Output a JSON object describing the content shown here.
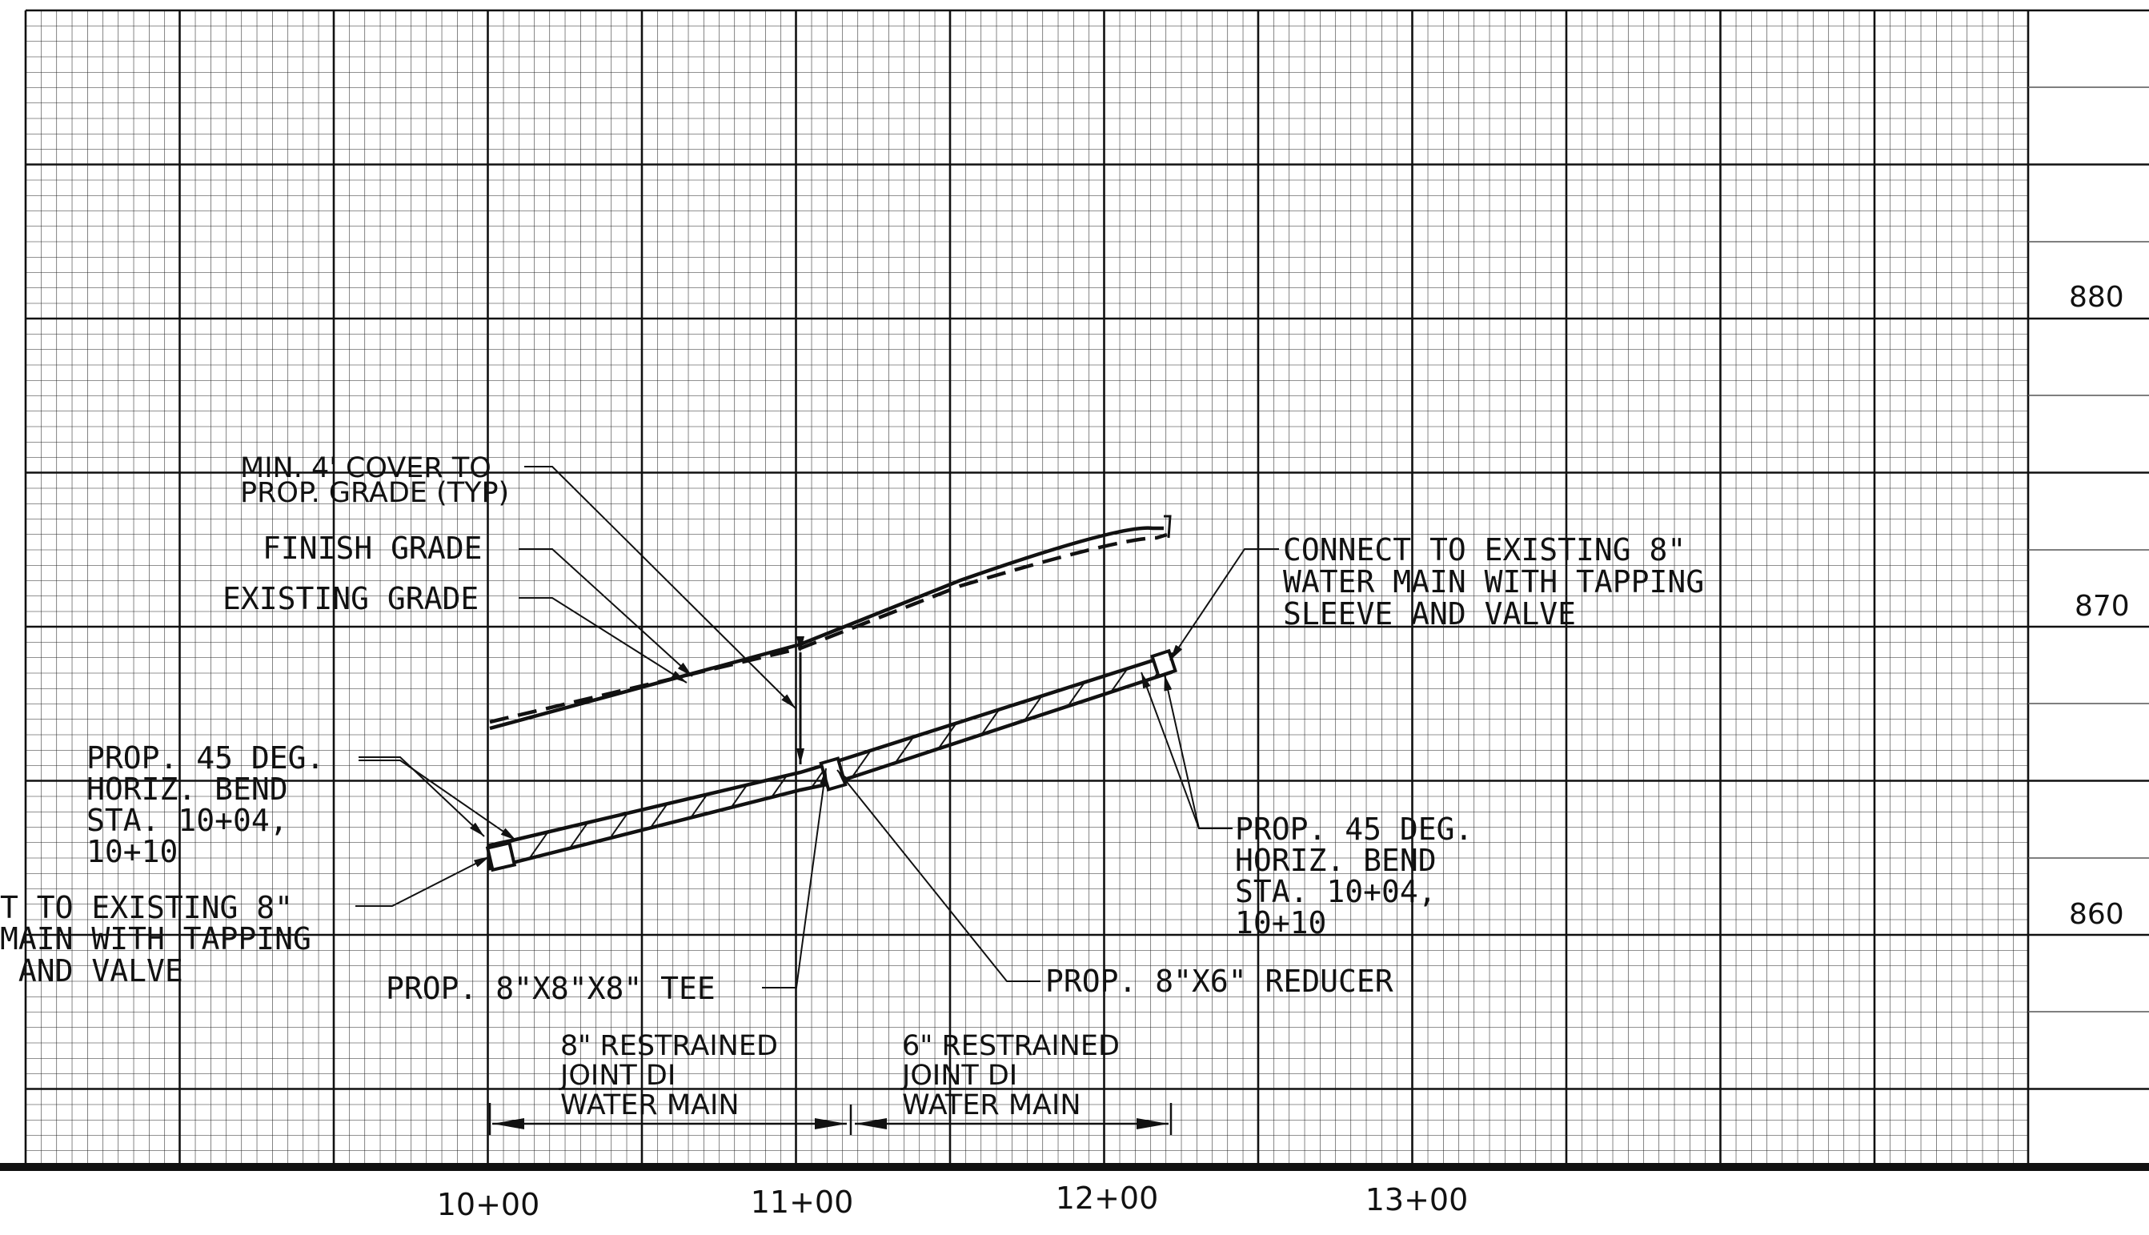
{
  "elevations": [
    {
      "label": "880",
      "value": 880
    },
    {
      "label": "870",
      "value": 870
    },
    {
      "label": "860",
      "value": 860
    }
  ],
  "stations": [
    {
      "label": "10+00",
      "value": 1000
    },
    {
      "label": "11+00",
      "value": 1100
    },
    {
      "label": "12+00",
      "value": 1200
    },
    {
      "label": "13+00",
      "value": 1300
    }
  ],
  "notes": {
    "min_cover": [
      "MIN. 4' COVER TO",
      "PROP. GRADE (TYP)"
    ],
    "finish_grade": "FINISH GRADE",
    "existing_grade": "EXISTING GRADE",
    "connect_right": [
      "CONNECT TO EXISTING 8\"",
      "WATER MAIN WITH TAPPING",
      "SLEEVE AND VALVE"
    ],
    "bend_left": [
      "PROP. 45 DEG.",
      "HORIZ. BEND",
      "STA. 10+04,",
      "10+10"
    ],
    "connect_left": [
      "T TO EXISTING 8\"",
      "MAIN WITH TAPPING",
      " AND VALVE"
    ],
    "bend_right": [
      "PROP. 45 DEG.",
      "HORIZ. BEND",
      "STA. 10+04,",
      "10+10"
    ],
    "tee": "PROP. 8\"X8\"X8\" TEE",
    "reducer": "PROP. 8\"X6\" REDUCER",
    "restrained_8": [
      "8\" RESTRAINED",
      "JOINT DI",
      "WATER MAIN"
    ],
    "restrained_6": [
      "6\" RESTRAINED",
      "JOINT DI",
      "WATER MAIN"
    ]
  }
}
